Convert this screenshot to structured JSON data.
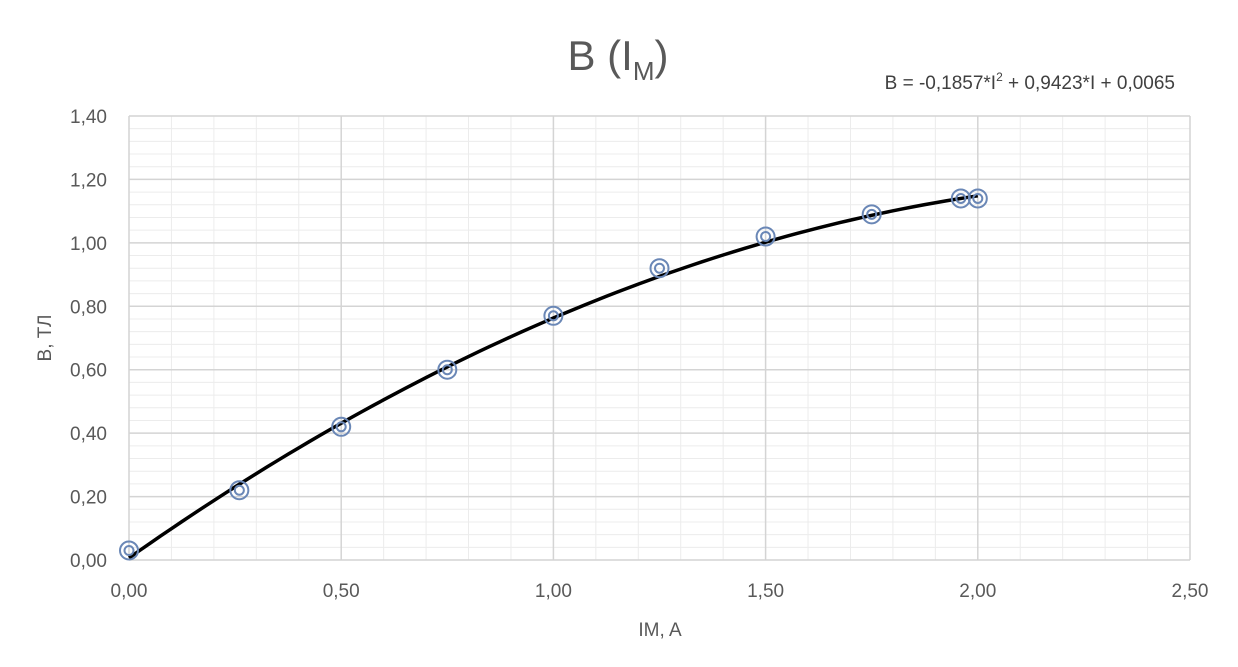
{
  "chart_data": {
    "type": "scatter",
    "title": "B (I",
    "title_subscript": "M",
    "title_close": ")",
    "xlabel": "IM, A",
    "ylabel": "B, ТЛ",
    "xlim": [
      0,
      2.5
    ],
    "ylim": [
      0,
      1.4
    ],
    "x_ticks": [
      0,
      0.5,
      1.0,
      1.5,
      2.0,
      2.5
    ],
    "x_tick_labels": [
      "0,00",
      "0,50",
      "1,00",
      "1,50",
      "2,00",
      "2,50"
    ],
    "y_ticks": [
      0,
      0.2,
      0.4,
      0.6,
      0.8,
      1.0,
      1.2,
      1.4
    ],
    "y_tick_labels": [
      "0,00",
      "0,20",
      "0,40",
      "0,60",
      "0,80",
      "1,00",
      "1,20",
      "1,40"
    ],
    "grid": true,
    "series": [
      {
        "x": [
          0.0,
          0.26,
          0.5,
          0.75,
          1.0,
          1.25,
          1.5,
          1.75,
          1.96,
          2.0
        ],
        "y": [
          0.03,
          0.22,
          0.42,
          0.6,
          0.77,
          0.92,
          1.02,
          1.09,
          1.14,
          1.14
        ],
        "marker": "double-circle",
        "color": "#6a87b6"
      }
    ],
    "trendline": {
      "type": "polynomial",
      "order": 2,
      "coefficients": [
        -0.1857,
        0.9423,
        0.0065
      ],
      "x_range": [
        0,
        2.0
      ],
      "color": "#000000",
      "equation_prefix": "B = -0,1857*I",
      "equation_sup": "2",
      "equation_suffix": " + 0,9423*I + 0,0065"
    }
  }
}
